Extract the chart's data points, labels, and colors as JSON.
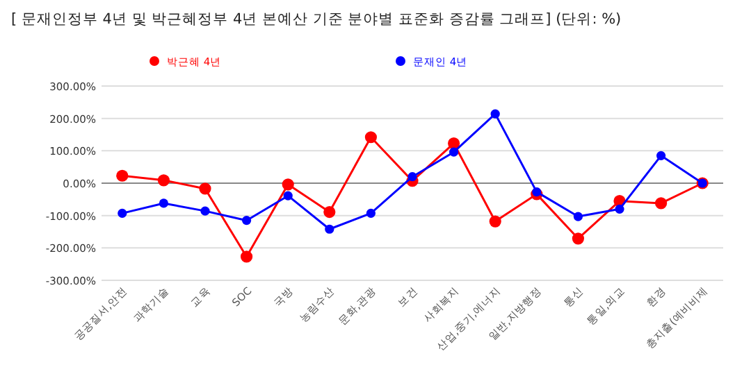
{
  "chart_data": {
    "type": "line",
    "title": "[ 문재인정부 4년 및 박근혜정부 4년 본예산 기준 분야별 표준화 증감률 그래프]   (단위: %)",
    "categories": [
      "공공질서,안전",
      "과학기술",
      "교육",
      "SOC",
      "국방",
      "농림수산",
      "문화,관광",
      "보건",
      "사회복지",
      "산업,중기,에너지",
      "일반,지방행정",
      "통신",
      "통일,외교",
      "환경",
      "총지출(예비비제"
    ],
    "series": [
      {
        "name": "박근혜 4년",
        "color": "#ff0000",
        "values": [
          23,
          9,
          -17,
          -227,
          -4,
          -89,
          142,
          7,
          123,
          -118,
          -34,
          -171,
          -55,
          -62,
          0
        ]
      },
      {
        "name": "문재인 4년",
        "color": "#0000ff",
        "values": [
          -93,
          -62,
          -86,
          -115,
          -39,
          -142,
          -93,
          20,
          96,
          214,
          -27,
          -103,
          -80,
          85,
          0
        ]
      }
    ],
    "ylim": [
      -300,
      300
    ],
    "yticks": [
      {
        "value": -300,
        "label": "-300.00%"
      },
      {
        "value": -200,
        "label": "-200.00%"
      },
      {
        "value": -100,
        "label": "-100.00%"
      },
      {
        "value": 0,
        "label": "0.00%"
      },
      {
        "value": 100,
        "label": "100.00%"
      },
      {
        "value": 200,
        "label": "200.00%"
      },
      {
        "value": 300,
        "label": "300.00%"
      }
    ],
    "ref_lines": [
      {
        "axis": "y",
        "value": 0,
        "color": "#888888"
      }
    ],
    "grid": "y",
    "legend": "top",
    "marker": "circle",
    "line_style": "solid"
  }
}
